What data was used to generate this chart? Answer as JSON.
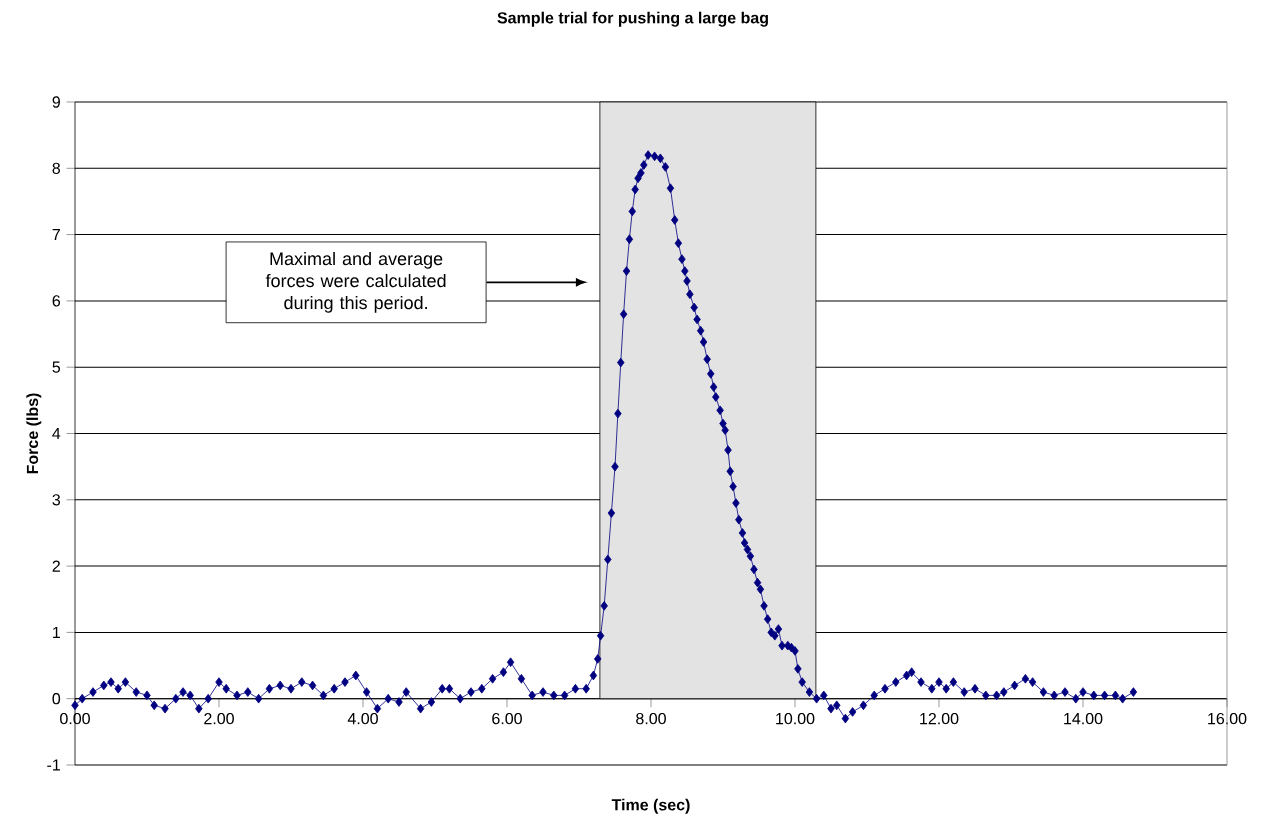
{
  "chart_data": {
    "type": "line",
    "title": "Sample trial for pushing a large bag",
    "xlabel": "Time (sec)",
    "ylabel": "Force (lbs)",
    "annotations": [
      "Maximal and average forces were calculated during this period."
    ],
    "bands": [
      {
        "axis": "x",
        "from": 7.29,
        "to": 10.29,
        "color": "#e3e3e3"
      }
    ],
    "series": [
      {
        "color": "#000080",
        "x": [
          0.0,
          0.1,
          0.25,
          0.4,
          0.5,
          0.6,
          0.7,
          0.85,
          1.0,
          1.1,
          1.25,
          1.4,
          1.5,
          1.6,
          1.72,
          1.85,
          2.0,
          2.1,
          2.25,
          2.4,
          2.55,
          2.7,
          2.85,
          3.0,
          3.15,
          3.3,
          3.45,
          3.6,
          3.75,
          3.9,
          4.05,
          4.2,
          4.35,
          4.5,
          4.6,
          4.8,
          4.95,
          5.1,
          5.2,
          5.35,
          5.5,
          5.65,
          5.8,
          5.95,
          6.05,
          6.2,
          6.35,
          6.5,
          6.65,
          6.8,
          6.95,
          7.1,
          7.2,
          7.26,
          7.3,
          7.35,
          7.4,
          7.45,
          7.5,
          7.54,
          7.58,
          7.62,
          7.66,
          7.7,
          7.74,
          7.78,
          7.82,
          7.86,
          7.9,
          7.96,
          8.05,
          8.13,
          8.2,
          8.27,
          8.33,
          8.38,
          8.43,
          8.47,
          8.5,
          8.54,
          8.6,
          8.64,
          8.69,
          8.73,
          8.78,
          8.83,
          8.87,
          8.9,
          8.96,
          9.0,
          9.03,
          9.07,
          9.1,
          9.14,
          9.18,
          9.22,
          9.27,
          9.3,
          9.34,
          9.38,
          9.43,
          9.48,
          9.52,
          9.57,
          9.62,
          9.67,
          9.72,
          9.77,
          9.82,
          9.9,
          9.95,
          10.0,
          10.04,
          10.1,
          10.2,
          10.3,
          10.4,
          10.5,
          10.58,
          10.7,
          10.8,
          10.95,
          11.1,
          11.25,
          11.4,
          11.55,
          11.62,
          11.75,
          11.9,
          12.0,
          12.1,
          12.2,
          12.35,
          12.5,
          12.65,
          12.8,
          12.9,
          13.05,
          13.2,
          13.3,
          13.45,
          13.6,
          13.75,
          13.9,
          14.0,
          14.15,
          14.3,
          14.45,
          14.55,
          14.7
        ],
        "values": [
          -0.1,
          0.0,
          0.1,
          0.2,
          0.25,
          0.15,
          0.25,
          0.1,
          0.05,
          -0.1,
          -0.15,
          0.0,
          0.1,
          0.05,
          -0.15,
          0.0,
          0.25,
          0.15,
          0.05,
          0.1,
          0.0,
          0.15,
          0.2,
          0.15,
          0.25,
          0.2,
          0.05,
          0.15,
          0.25,
          0.35,
          0.1,
          -0.15,
          0.0,
          -0.05,
          0.1,
          -0.15,
          -0.05,
          0.15,
          0.15,
          0.0,
          0.1,
          0.15,
          0.3,
          0.4,
          0.55,
          0.3,
          0.05,
          0.1,
          0.05,
          0.05,
          0.15,
          0.15,
          0.35,
          0.6,
          0.95,
          1.4,
          2.1,
          2.8,
          3.5,
          4.3,
          5.07,
          5.8,
          6.45,
          6.93,
          7.35,
          7.68,
          7.85,
          7.93,
          8.05,
          8.2,
          8.18,
          8.15,
          8.02,
          7.7,
          7.22,
          6.87,
          6.63,
          6.45,
          6.3,
          6.1,
          5.9,
          5.72,
          5.55,
          5.38,
          5.12,
          4.9,
          4.7,
          4.55,
          4.35,
          4.15,
          4.05,
          3.75,
          3.43,
          3.2,
          2.95,
          2.7,
          2.5,
          2.35,
          2.25,
          2.15,
          1.95,
          1.75,
          1.65,
          1.4,
          1.2,
          1.0,
          0.95,
          1.05,
          0.8,
          0.8,
          0.77,
          0.72,
          0.45,
          0.25,
          0.1,
          0.0,
          0.05,
          -0.15,
          -0.1,
          -0.3,
          -0.2,
          -0.1,
          0.05,
          0.15,
          0.25,
          0.35,
          0.4,
          0.25,
          0.15,
          0.25,
          0.15,
          0.25,
          0.1,
          0.15,
          0.05,
          0.05,
          0.1,
          0.2,
          0.3,
          0.25,
          0.1,
          0.05,
          0.1,
          0.0,
          0.1,
          0.05,
          0.05,
          0.05,
          0.0,
          0.1
        ]
      }
    ],
    "xlim": [
      0,
      16
    ],
    "ylim": [
      -1,
      9
    ],
    "xticks": [
      {
        "value": 0,
        "label": "0.00"
      },
      {
        "value": 2,
        "label": "2.00"
      },
      {
        "value": 4,
        "label": "4.00"
      },
      {
        "value": 6,
        "label": "6.00"
      },
      {
        "value": 8,
        "label": "8.00"
      },
      {
        "value": 10,
        "label": "10.00"
      },
      {
        "value": 12,
        "label": "12.00"
      },
      {
        "value": 14,
        "label": "14.00"
      },
      {
        "value": 16,
        "label": "16.00"
      }
    ],
    "yticks": [
      -1,
      0,
      1,
      2,
      3,
      4,
      5,
      6,
      7,
      8,
      9
    ],
    "grid": "y",
    "marker": "diamond",
    "line_style": "solid"
  }
}
